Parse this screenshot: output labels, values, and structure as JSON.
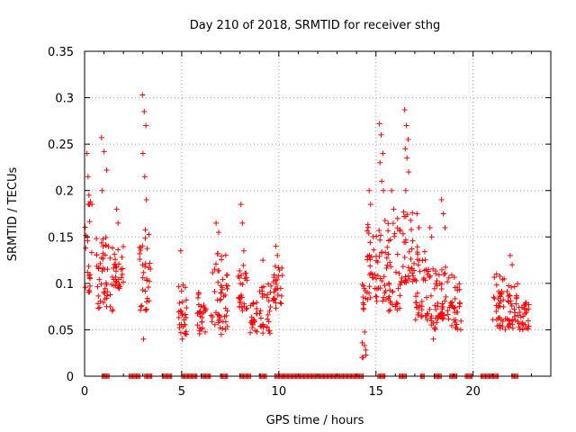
{
  "chart_data": {
    "type": "scatter",
    "title": "Day 210 of 2018, SRMTID for receiver sthg",
    "xlabel": "GPS time / hours",
    "ylabel": "SRMTID / TECUs",
    "xlim": [
      0,
      24
    ],
    "ylim": [
      0,
      0.35
    ],
    "x_ticks": [
      0,
      5,
      10,
      15,
      20
    ],
    "x_tick_labels": [
      "0",
      "5",
      "10",
      "15",
      "20"
    ],
    "y_ticks": [
      0,
      0.05,
      0.1,
      0.15,
      0.2,
      0.25,
      0.3,
      0.35
    ],
    "y_tick_labels": [
      "0",
      "0.05",
      "0.1",
      "0.15",
      "0.2",
      "0.25",
      "0.3",
      "0.35"
    ],
    "grid": true,
    "marker": "+",
    "color": "#ff0000",
    "series": [
      {
        "name": "SRMTID",
        "clusters": [
          {
            "x_start": 0.0,
            "x_end": 0.4,
            "y_min": 0.09,
            "y_max": 0.2,
            "spikes": [
              0.24,
              0.215,
              0.185,
              0.15
            ]
          },
          {
            "x_start": 0.6,
            "x_end": 1.5,
            "y_min": 0.07,
            "y_max": 0.16,
            "spikes": [
              0.257,
              0.242,
              0.222,
              0.2
            ]
          },
          {
            "x_start": 1.5,
            "x_end": 2.0,
            "y_min": 0.09,
            "y_max": 0.14,
            "spikes": [
              0.18,
              0.165
            ]
          },
          {
            "x_start": 2.8,
            "x_end": 3.4,
            "y_min": 0.07,
            "y_max": 0.16,
            "spikes": [
              0.303,
              0.285,
              0.27,
              0.24,
              0.215,
              0.19,
              0.04
            ]
          },
          {
            "x_start": 4.8,
            "x_end": 5.3,
            "y_min": 0.045,
            "y_max": 0.1,
            "spikes": [
              0.135,
              0.04
            ]
          },
          {
            "x_start": 5.8,
            "x_end": 6.3,
            "y_min": 0.045,
            "y_max": 0.09,
            "spikes": []
          },
          {
            "x_start": 6.5,
            "x_end": 7.4,
            "y_min": 0.05,
            "y_max": 0.14,
            "spikes": [
              0.165,
              0.155,
              0.045
            ]
          },
          {
            "x_start": 7.9,
            "x_end": 8.4,
            "y_min": 0.07,
            "y_max": 0.12,
            "spikes": [
              0.185,
              0.165,
              0.135
            ]
          },
          {
            "x_start": 8.5,
            "x_end": 8.9,
            "y_min": 0.045,
            "y_max": 0.08,
            "spikes": []
          },
          {
            "x_start": 9.0,
            "x_end": 9.6,
            "y_min": 0.045,
            "y_max": 0.1,
            "spikes": [
              0.125
            ]
          },
          {
            "x_start": 9.7,
            "x_end": 10.2,
            "y_min": 0.07,
            "y_max": 0.12,
            "spikes": [
              0.14,
              0.13
            ]
          },
          {
            "x_start": 14.2,
            "x_end": 14.5,
            "y_min": 0.02,
            "y_max": 0.1,
            "spikes": []
          },
          {
            "x_start": 14.5,
            "x_end": 15.0,
            "y_min": 0.08,
            "y_max": 0.17,
            "spikes": [
              0.2,
              0.185
            ]
          },
          {
            "x_start": 15.0,
            "x_end": 15.6,
            "y_min": 0.08,
            "y_max": 0.17,
            "spikes": [
              0.272,
              0.26,
              0.24,
              0.23,
              0.21,
              0.2
            ]
          },
          {
            "x_start": 15.6,
            "x_end": 16.3,
            "y_min": 0.07,
            "y_max": 0.17,
            "spikes": [
              0.2,
              0.18
            ]
          },
          {
            "x_start": 16.3,
            "x_end": 16.9,
            "y_min": 0.1,
            "y_max": 0.18,
            "spikes": [
              0.287,
              0.27,
              0.255,
              0.245,
              0.235,
              0.22,
              0.2
            ]
          },
          {
            "x_start": 16.9,
            "x_end": 17.6,
            "y_min": 0.06,
            "y_max": 0.14,
            "spikes": [
              0.175,
              0.16
            ]
          },
          {
            "x_start": 17.6,
            "x_end": 18.2,
            "y_min": 0.05,
            "y_max": 0.12,
            "spikes": [
              0.16,
              0.15,
              0.04
            ]
          },
          {
            "x_start": 18.2,
            "x_end": 18.8,
            "y_min": 0.06,
            "y_max": 0.12,
            "spikes": [
              0.19,
              0.175,
              0.16
            ]
          },
          {
            "x_start": 18.8,
            "x_end": 19.4,
            "y_min": 0.05,
            "y_max": 0.11,
            "spikes": []
          },
          {
            "x_start": 21.0,
            "x_end": 21.7,
            "y_min": 0.05,
            "y_max": 0.11,
            "spikes": [
              0.11
            ]
          },
          {
            "x_start": 21.7,
            "x_end": 22.4,
            "y_min": 0.05,
            "y_max": 0.1,
            "spikes": [
              0.13,
              0.12
            ]
          },
          {
            "x_start": 22.4,
            "x_end": 22.9,
            "y_min": 0.05,
            "y_max": 0.08,
            "spikes": []
          }
        ],
        "zero_segments": [
          [
            0.9,
            1.3
          ],
          [
            2.3,
            2.9
          ],
          [
            3.1,
            3.5
          ],
          [
            4.0,
            4.5
          ],
          [
            5.0,
            5.8
          ],
          [
            6.0,
            6.5
          ],
          [
            7.0,
            7.4
          ],
          [
            8.0,
            8.6
          ],
          [
            9.0,
            9.4
          ],
          [
            9.8,
            10.2
          ],
          [
            10.2,
            14.4
          ],
          [
            15.1,
            15.5
          ],
          [
            16.2,
            16.6
          ],
          [
            17.3,
            17.5
          ],
          [
            18.0,
            18.4
          ],
          [
            18.8,
            19.2
          ],
          [
            19.6,
            20.0
          ],
          [
            20.4,
            21.3
          ],
          [
            22.0,
            22.3
          ]
        ]
      }
    ]
  }
}
